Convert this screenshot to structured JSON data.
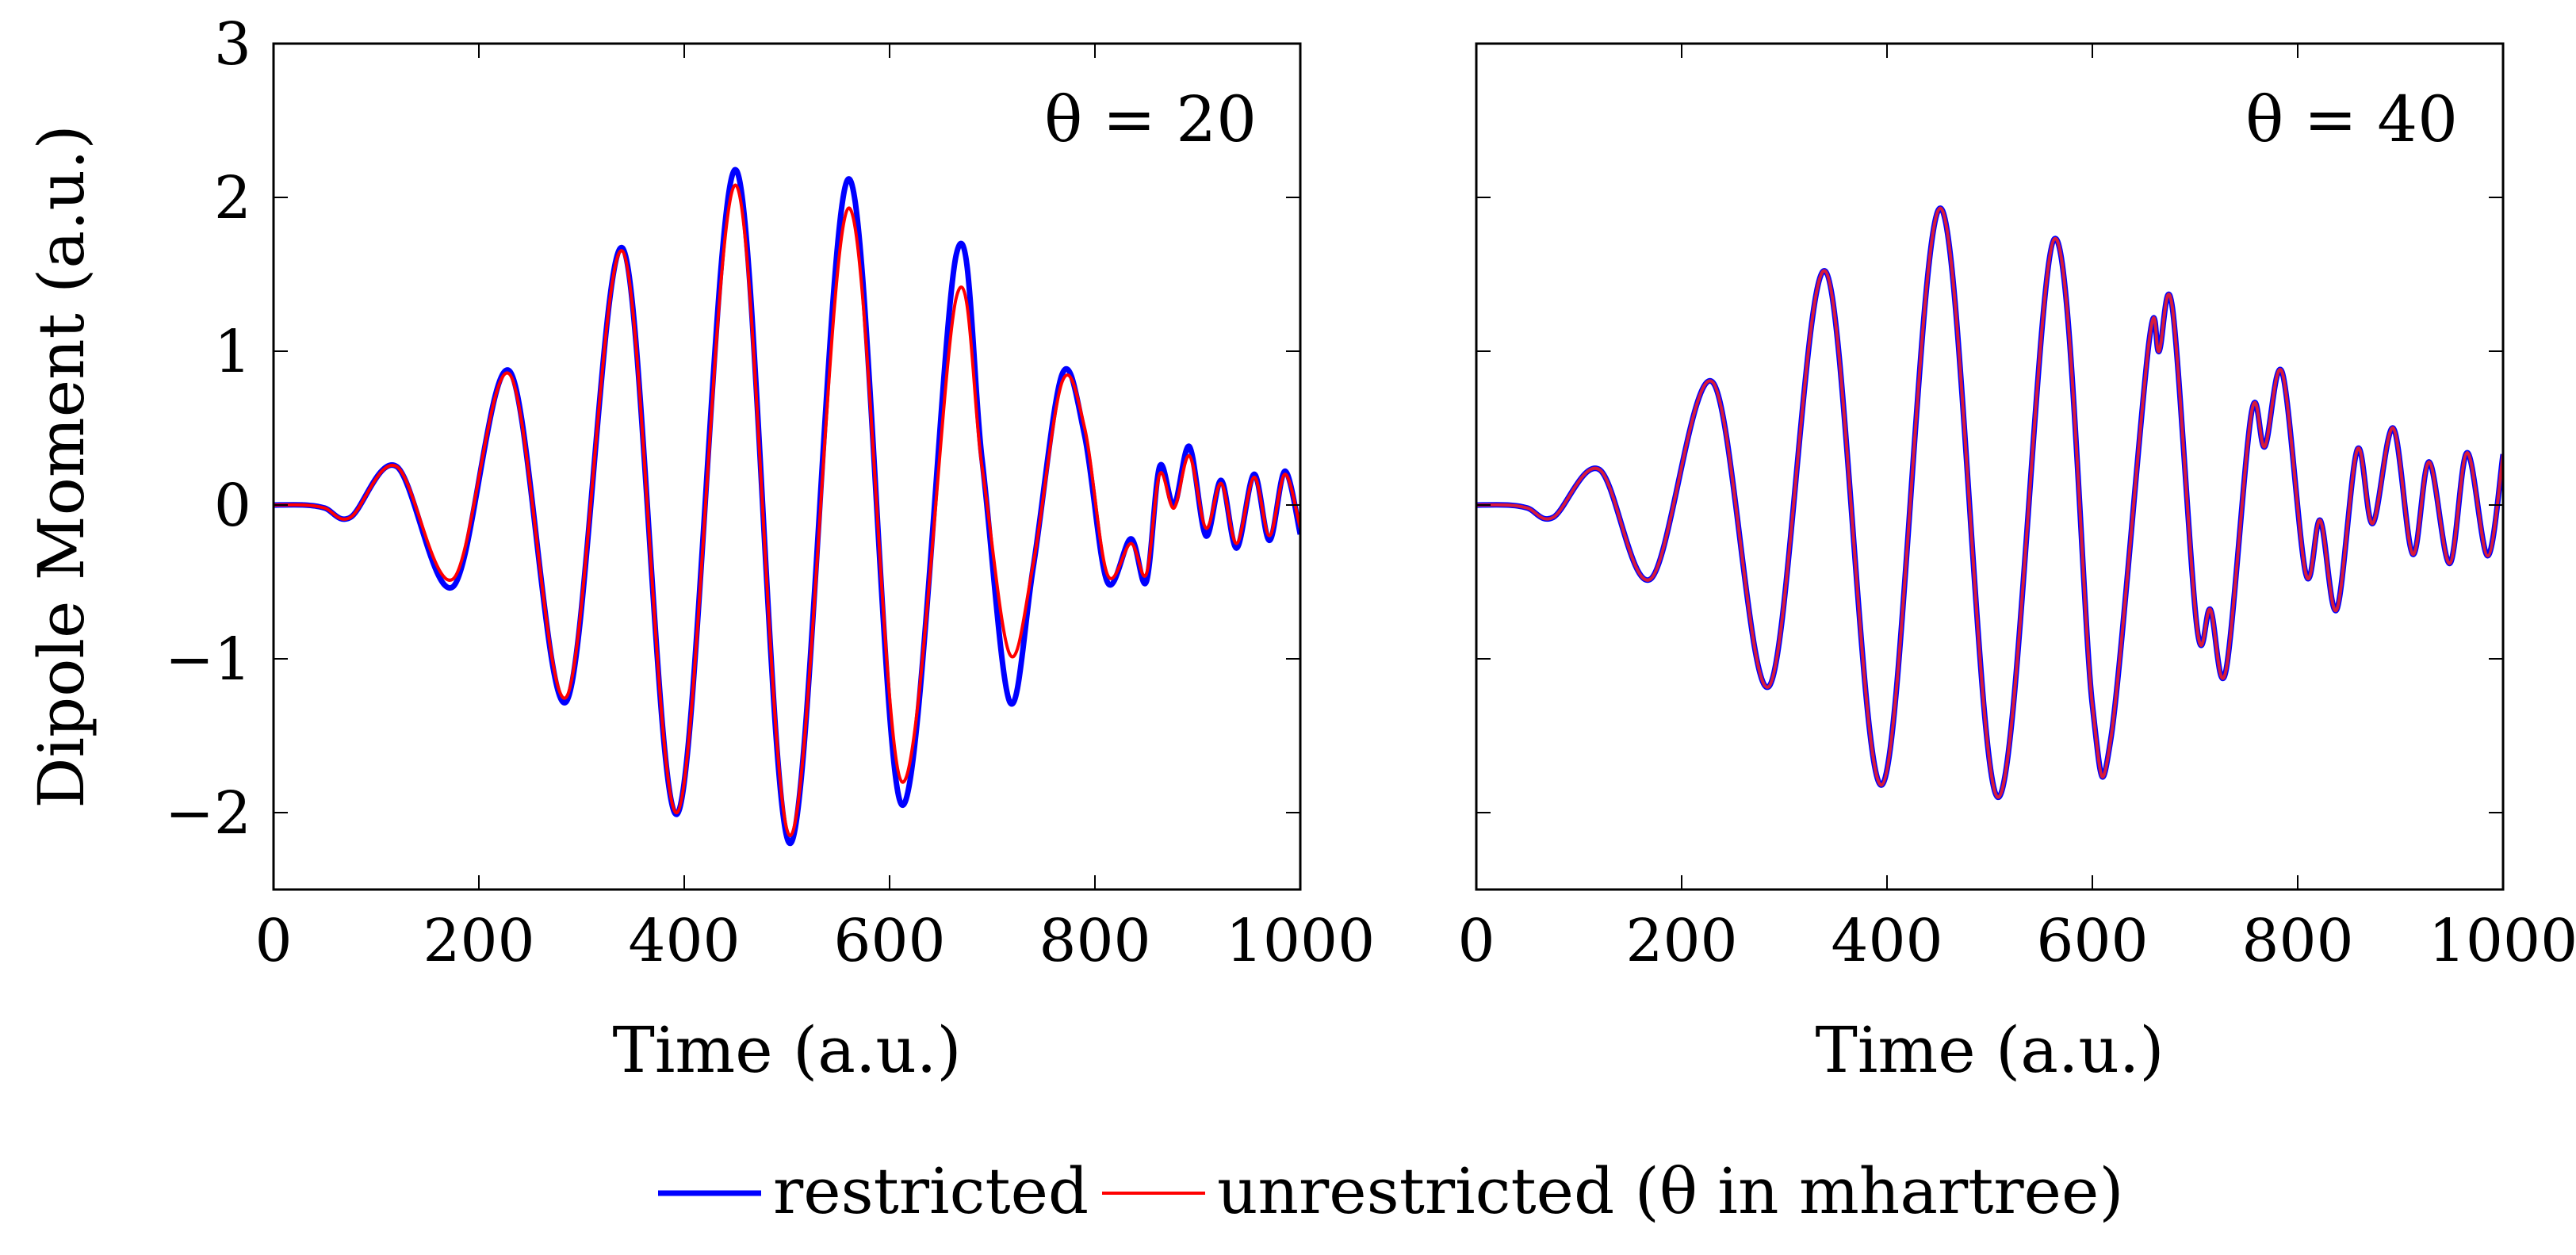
{
  "chart_data": [
    {
      "type": "line",
      "annotation": "θ = 20",
      "xlabel": "Time (a.u.)",
      "ylabel": "Dipole Moment (a.u.)",
      "xlim": [
        0,
        1000
      ],
      "ylim": [
        -2.5,
        3
      ],
      "xticks": [
        0,
        200,
        400,
        600,
        800,
        1000
      ],
      "yticks": [
        -2,
        -1,
        0,
        1,
        2,
        3
      ],
      "xtick_labels": [
        "0",
        "200",
        "400",
        "600",
        "800",
        "1000"
      ],
      "ytick_labels": [
        "−2",
        "−1",
        "0",
        "1",
        "2",
        "3"
      ],
      "grid": false,
      "series": [
        {
          "name": "restricted",
          "color": "#0000ff",
          "x": [
            0,
            30,
            50,
            75,
            120,
            175,
            230,
            285,
            340,
            393,
            450,
            503,
            560,
            612,
            665,
            690,
            717,
            740,
            768,
            790,
            812,
            835,
            850,
            863,
            877,
            892,
            908,
            923,
            938,
            955,
            970,
            985,
            1000
          ],
          "y": [
            0,
            0,
            -0.02,
            -0.08,
            0.25,
            -0.53,
            0.87,
            -1.28,
            1.67,
            -2.01,
            2.18,
            -2.2,
            2.12,
            -1.95,
            1.63,
            0.3,
            -1.28,
            -0.4,
            0.85,
            0.45,
            -0.5,
            -0.22,
            -0.5,
            0.25,
            0.0,
            0.38,
            -0.2,
            0.16,
            -0.28,
            0.2,
            -0.23,
            0.22,
            -0.19
          ]
        },
        {
          "name": "unrestricted (θ in mhartree)",
          "color": "#ff0000",
          "x": [
            0,
            30,
            50,
            75,
            120,
            175,
            230,
            285,
            340,
            393,
            450,
            503,
            560,
            612,
            665,
            690,
            717,
            740,
            768,
            790,
            812,
            835,
            850,
            863,
            877,
            892,
            908,
            923,
            938,
            955,
            970,
            985,
            1000
          ],
          "y": [
            0,
            0,
            -0.02,
            -0.08,
            0.25,
            -0.48,
            0.85,
            -1.25,
            1.65,
            -2.0,
            2.08,
            -2.15,
            1.93,
            -1.8,
            1.35,
            0.25,
            -0.97,
            -0.38,
            0.8,
            0.5,
            -0.45,
            -0.25,
            -0.45,
            0.2,
            -0.02,
            0.32,
            -0.15,
            0.14,
            -0.25,
            0.18,
            -0.2,
            0.2,
            -0.15
          ]
        }
      ]
    },
    {
      "type": "line",
      "annotation": "θ = 40",
      "xlabel": "Time (a.u.)",
      "ylabel": "",
      "xlim": [
        0,
        1000
      ],
      "ylim": [
        -2.5,
        3
      ],
      "xticks": [
        0,
        200,
        400,
        600,
        800,
        1000
      ],
      "yticks": [
        -2,
        -1,
        0,
        1,
        2,
        3
      ],
      "xtick_labels": [
        "0",
        "200",
        "400",
        "600",
        "800",
        "1000"
      ],
      "ytick_labels": [],
      "grid": false,
      "series": [
        {
          "name": "restricted",
          "color": "#0000ff",
          "x": [
            0,
            30,
            50,
            75,
            120,
            170,
            230,
            285,
            340,
            395,
            452,
            508,
            563,
            600,
            618,
            655,
            665,
            678,
            702,
            715,
            730,
            755,
            768,
            785,
            808,
            822,
            838,
            858,
            873,
            893,
            912,
            928,
            948,
            965,
            985,
            1000
          ],
          "y": [
            0,
            0,
            -0.02,
            -0.08,
            0.23,
            -0.48,
            0.8,
            -1.18,
            1.52,
            -1.82,
            1.93,
            -1.9,
            1.73,
            -1.3,
            -1.52,
            1.05,
            1.0,
            1.28,
            -0.8,
            -0.68,
            -1.08,
            0.6,
            0.38,
            0.86,
            -0.45,
            -0.1,
            -0.68,
            0.36,
            -0.12,
            0.5,
            -0.32,
            0.28,
            -0.38,
            0.34,
            -0.33,
            0.33
          ]
        },
        {
          "name": "unrestricted (θ in mhartree)",
          "color": "#d81b3a",
          "x": [
            0,
            30,
            50,
            75,
            120,
            170,
            230,
            285,
            340,
            395,
            452,
            508,
            563,
            600,
            618,
            655,
            665,
            678,
            702,
            715,
            730,
            755,
            768,
            785,
            808,
            822,
            838,
            858,
            873,
            893,
            912,
            928,
            948,
            965,
            985,
            1000
          ],
          "y": [
            0,
            0,
            -0.02,
            -0.08,
            0.23,
            -0.48,
            0.8,
            -1.18,
            1.52,
            -1.82,
            1.93,
            -1.9,
            1.73,
            -1.3,
            -1.52,
            1.05,
            1.0,
            1.28,
            -0.8,
            -0.68,
            -1.08,
            0.6,
            0.38,
            0.86,
            -0.45,
            -0.1,
            -0.68,
            0.36,
            -0.12,
            0.5,
            -0.32,
            0.28,
            -0.38,
            0.34,
            -0.33,
            0.33
          ]
        }
      ]
    }
  ],
  "legend": {
    "placement": "bottom-center",
    "items": [
      {
        "label": "restricted",
        "color": "#0000ff"
      },
      {
        "label": "unrestricted (θ in mhartree)",
        "color": "#ff0000"
      }
    ]
  }
}
